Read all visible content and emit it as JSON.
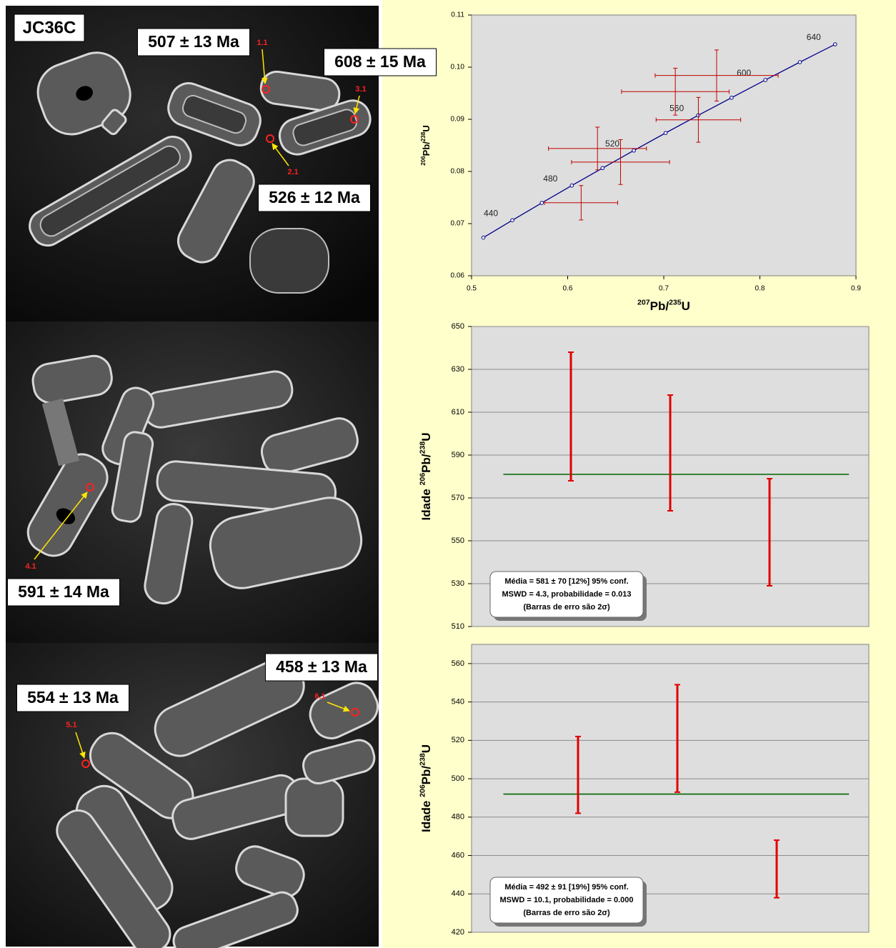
{
  "image_panels": [
    {
      "sample": "JC36C",
      "ages": [
        "507 ± 13 Ma",
        "608 ± 15 Ma",
        "526 ± 12 Ma"
      ],
      "spots": [
        "1.1",
        "3.1",
        "2.1"
      ]
    },
    {
      "ages": [
        "591 ± 14 Ma"
      ],
      "spots": [
        "4.1"
      ]
    },
    {
      "ages": [
        "458 ± 13 Ma",
        "554 ± 13 Ma"
      ],
      "spots": [
        "6.1",
        "5.1"
      ]
    }
  ],
  "chart_data": [
    {
      "type": "concordia",
      "xlabel": [
        "207",
        "Pb/",
        "235",
        "U"
      ],
      "ylabel": [
        "206",
        "Pb/",
        "238",
        "U"
      ],
      "xlim": [
        0.5,
        0.9
      ],
      "xticks": [
        0.5,
        0.6,
        0.7,
        0.8,
        0.9
      ],
      "ylim": [
        0.06,
        0.11
      ],
      "yticks": [
        0.06,
        0.07,
        0.08,
        0.09,
        {
          "value": 0.1,
          "label": "0.10"
        },
        0.11
      ],
      "concordia": {
        "color": "#00008b",
        "x": [
          0.5123,
          0.5424,
          0.5731,
          0.6043,
          0.6363,
          0.6688,
          0.7019,
          0.7358,
          0.7705,
          0.8057,
          0.8416,
          0.8783
        ],
        "y": [
          0.06732,
          0.07064,
          0.07397,
          0.0773,
          0.08065,
          0.08401,
          0.08738,
          0.09076,
          0.09414,
          0.09754,
          0.10096,
          0.10438
        ],
        "labels": [
          null,
          440,
          null,
          480,
          null,
          520,
          null,
          560,
          null,
          600,
          null,
          640
        ]
      },
      "points": {
        "color": "#c00000",
        "x": [
          0.614,
          0.631,
          0.655,
          0.712,
          0.755,
          0.736
        ],
        "x_err": [
          0.038,
          0.051,
          0.051,
          0.056,
          0.064,
          0.044
        ],
        "y": [
          0.074,
          0.0844,
          0.0818,
          0.0953,
          0.0984,
          0.0899
        ],
        "y_err": [
          0.0033,
          0.0041,
          0.0043,
          0.0045,
          0.0049,
          0.0043
        ]
      }
    },
    {
      "type": "weighted_mean",
      "ylabel": [
        "Idade ",
        "206",
        "Pb/",
        "238",
        "U"
      ],
      "ylim": [
        510,
        650
      ],
      "yticks": [
        510,
        530,
        550,
        570,
        590,
        610,
        630,
        650
      ],
      "grid": true,
      "categories": [
        null,
        null,
        null
      ],
      "values": [
        608,
        591,
        554
      ],
      "errors": [
        30,
        27,
        25
      ],
      "color": "#e00000",
      "mean": 581,
      "mean_color": "#006400",
      "box": [
        "Média = 581 ± 70  [12%]  95% conf.",
        "MSWD = 4.3, probabilidade = 0.013",
        "(Barras de erro são 2σ)"
      ]
    },
    {
      "type": "weighted_mean",
      "ylabel": [
        "Idade ",
        "206",
        "Pb/",
        "238",
        "U"
      ],
      "ylim": [
        420,
        570
      ],
      "yticks": [
        420,
        440,
        460,
        480,
        500,
        520,
        540,
        560
      ],
      "grid": true,
      "categories": [
        null,
        null,
        null
      ],
      "values": [
        502,
        521,
        453
      ],
      "errors": [
        20,
        28,
        15
      ],
      "color": "#e00000",
      "mean": 492,
      "mean_color": "#006400",
      "box": [
        "Média = 492 ± 91  [19%]  95% conf.",
        "MSWD = 10.1, probabilidade = 0.000",
        "(Barras de erro são 2σ)"
      ]
    }
  ]
}
